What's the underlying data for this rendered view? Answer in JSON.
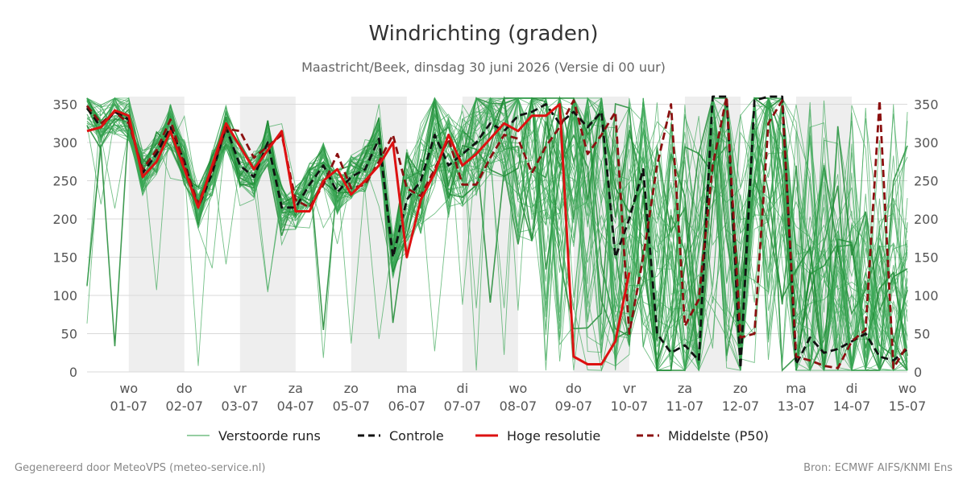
{
  "chart_data": {
    "type": "line",
    "title": "Windrichting (graden)",
    "subtitle": "Maastricht/Beek, dinsdag 30 juni 2026 (Versie di 00 uur)",
    "xlabel": "",
    "ylabel": "",
    "ylim": [
      0,
      360
    ],
    "yticks": [
      0,
      50,
      100,
      150,
      200,
      250,
      300,
      350
    ],
    "grid": true,
    "legend_position": "bottom",
    "x_range": [
      -0.75,
      14.0
    ],
    "x_ticks": [
      {
        "x": 0,
        "day": "wo",
        "date": "01-07"
      },
      {
        "x": 1,
        "day": "do",
        "date": "02-07"
      },
      {
        "x": 2,
        "day": "vr",
        "date": "03-07"
      },
      {
        "x": 3,
        "day": "za",
        "date": "04-07"
      },
      {
        "x": 4,
        "day": "zo",
        "date": "05-07"
      },
      {
        "x": 5,
        "day": "ma",
        "date": "06-07"
      },
      {
        "x": 6,
        "day": "di",
        "date": "07-07"
      },
      {
        "x": 7,
        "day": "wo",
        "date": "08-07"
      },
      {
        "x": 8,
        "day": "do",
        "date": "09-07"
      },
      {
        "x": 9,
        "day": "vr",
        "date": "10-07"
      },
      {
        "x": 10,
        "day": "za",
        "date": "11-07"
      },
      {
        "x": 11,
        "day": "zo",
        "date": "12-07"
      },
      {
        "x": 12,
        "day": "ma",
        "date": "13-07"
      },
      {
        "x": 13,
        "day": "di",
        "date": "14-07"
      },
      {
        "x": 14,
        "day": "wo",
        "date": "15-07"
      }
    ],
    "weekend_bands": [
      [
        0,
        1
      ],
      [
        2,
        3
      ],
      [
        4,
        5
      ],
      [
        6,
        7
      ],
      [
        8,
        9
      ],
      [
        10,
        11
      ],
      [
        12,
        13
      ]
    ],
    "ensemble_members": 50,
    "series": [
      {
        "name": "Controle",
        "color": "#111111",
        "dash": "dashed",
        "x": [
          -0.75,
          -0.5,
          -0.25,
          0,
          0.25,
          0.5,
          0.75,
          1,
          1.25,
          1.5,
          1.75,
          2,
          2.25,
          2.5,
          2.75,
          3,
          3.25,
          3.5,
          3.75,
          4,
          4.25,
          4.5,
          4.75,
          5,
          5.25,
          5.5,
          5.75,
          6,
          6.25,
          6.5,
          6.75,
          7,
          7.25,
          7.5,
          7.75,
          8,
          8.25,
          8.5,
          8.75,
          9,
          9.25,
          9.5,
          9.75,
          10,
          10.25,
          10.5,
          10.75,
          11,
          11.25,
          11.5,
          11.75,
          12,
          12.25,
          12.5,
          12.75,
          13,
          13.25,
          13.5,
          13.75,
          14
        ],
        "values": [
          345,
          320,
          340,
          330,
          260,
          285,
          320,
          275,
          215,
          260,
          320,
          270,
          255,
          300,
          215,
          215,
          245,
          270,
          235,
          255,
          265,
          305,
          150,
          225,
          250,
          310,
          270,
          285,
          300,
          325,
          315,
          335,
          340,
          350,
          325,
          340,
          320,
          340,
          150,
          200,
          265,
          50,
          25,
          35,
          15,
          360,
          360,
          5,
          355,
          360,
          360,
          10,
          45,
          25,
          30,
          40,
          50,
          20,
          15,
          30
        ]
      },
      {
        "name": "Hoge resolutie",
        "color": "#dd1111",
        "dash": "solid",
        "x": [
          -0.75,
          -0.5,
          -0.25,
          0,
          0.25,
          0.5,
          0.75,
          1,
          1.25,
          1.5,
          1.75,
          2,
          2.25,
          2.5,
          2.75,
          3,
          3.25,
          3.5,
          3.75,
          4,
          4.25,
          4.5,
          4.75,
          5,
          5.25,
          5.5,
          5.75,
          6,
          6.25,
          6.5,
          6.75,
          7,
          7.25,
          7.5,
          7.75,
          8,
          8.25,
          8.5,
          8.75,
          9
        ],
        "values": [
          315,
          320,
          342,
          335,
          255,
          275,
          315,
          265,
          215,
          270,
          325,
          295,
          265,
          290,
          315,
          210,
          210,
          250,
          265,
          232,
          250,
          270,
          300,
          150,
          225,
          260,
          310,
          270,
          285,
          305,
          325,
          315,
          335,
          335,
          350,
          20,
          10,
          10,
          40,
          130
        ]
      },
      {
        "name": "Middelste (P50)",
        "color": "#8b1010",
        "dash": "dashed",
        "x": [
          -0.75,
          -0.5,
          -0.25,
          0,
          0.25,
          0.5,
          0.75,
          1,
          1.25,
          1.5,
          1.75,
          2,
          2.25,
          2.5,
          2.75,
          3,
          3.25,
          3.5,
          3.75,
          4,
          4.25,
          4.5,
          4.75,
          5,
          5.25,
          5.5,
          5.75,
          6,
          6.25,
          6.5,
          6.75,
          7,
          7.25,
          7.5,
          7.75,
          8,
          8.25,
          8.5,
          8.75,
          9,
          9.25,
          9.5,
          9.75,
          10,
          10.25,
          10.5,
          10.75,
          11,
          11.25,
          11.5,
          11.75,
          12,
          12.25,
          12.5,
          12.75,
          13,
          13.25,
          13.5,
          13.75,
          14
        ],
        "values": [
          348,
          325,
          340,
          325,
          265,
          290,
          330,
          270,
          220,
          265,
          318,
          315,
          280,
          295,
          310,
          225,
          215,
          245,
          285,
          240,
          245,
          275,
          310,
          240,
          230,
          265,
          305,
          245,
          245,
          280,
          310,
          305,
          260,
          295,
          320,
          355,
          285,
          310,
          340,
          50,
          150,
          270,
          350,
          60,
          95,
          270,
          360,
          45,
          50,
          325,
          355,
          20,
          15,
          8,
          5,
          40,
          55,
          355,
          5,
          35
        ]
      }
    ],
    "legend": [
      {
        "label": "Verstoorde runs",
        "color": "#2e9e45",
        "style": "thin"
      },
      {
        "label": "Controle",
        "color": "#111111",
        "style": "dashed"
      },
      {
        "label": "Hoge resolutie",
        "color": "#dd1111",
        "style": "solid"
      },
      {
        "label": "Middelste (P50)",
        "color": "#8b1010",
        "style": "dashed"
      }
    ]
  },
  "footer": {
    "left": "Gegenereerd door MeteoVPS (meteo-service.nl)",
    "right": "Bron: ECMWF AIFS/KNMI Ens"
  }
}
